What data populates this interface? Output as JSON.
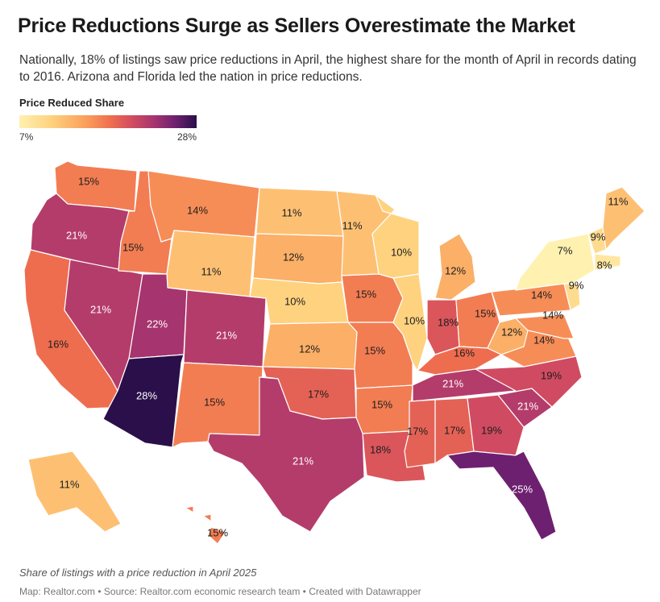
{
  "title": "Price Reductions Surge as Sellers Overestimate the Market",
  "subtitle": "Nationally, 18% of listings saw price reductions in April, the highest share for the month of April in records dating to 2016. Arizona and Florida led the nation in price reductions.",
  "legend": {
    "title": "Price Reduced Share",
    "min": "7%",
    "max": "28%"
  },
  "note": "Share of listings with a price reduction in April 2025",
  "source": "Map: Realtor.com • Source: Realtor.com economic research team • Created with Datawrapper",
  "chart_data": {
    "type": "choropleth",
    "title": "Price Reductions Surge as Sellers Overestimate the Market",
    "value_range": [
      7,
      28
    ],
    "unit": "%",
    "states": [
      {
        "id": "WA",
        "value": 15,
        "label": "15%"
      },
      {
        "id": "OR",
        "value": 21,
        "label": "21%"
      },
      {
        "id": "CA",
        "value": 16,
        "label": "16%"
      },
      {
        "id": "NV",
        "value": 21,
        "label": "21%"
      },
      {
        "id": "ID",
        "value": 15,
        "label": "15%"
      },
      {
        "id": "MT",
        "value": 14,
        "label": "14%"
      },
      {
        "id": "WY",
        "value": 11,
        "label": "11%"
      },
      {
        "id": "UT",
        "value": 22,
        "label": "22%"
      },
      {
        "id": "AZ",
        "value": 28,
        "label": "28%"
      },
      {
        "id": "CO",
        "value": 21,
        "label": "21%"
      },
      {
        "id": "NM",
        "value": 15,
        "label": "15%"
      },
      {
        "id": "ND",
        "value": 11,
        "label": "11%"
      },
      {
        "id": "SD",
        "value": 12,
        "label": "12%"
      },
      {
        "id": "NE",
        "value": 10,
        "label": "10%"
      },
      {
        "id": "KS",
        "value": 12,
        "label": "12%"
      },
      {
        "id": "OK",
        "value": 17,
        "label": "17%"
      },
      {
        "id": "TX",
        "value": 21,
        "label": "21%"
      },
      {
        "id": "MN",
        "value": 11,
        "label": "11%"
      },
      {
        "id": "IA",
        "value": 15,
        "label": "15%"
      },
      {
        "id": "MO",
        "value": 15,
        "label": "15%"
      },
      {
        "id": "AR",
        "value": 15,
        "label": "15%"
      },
      {
        "id": "LA",
        "value": 18,
        "label": "18%"
      },
      {
        "id": "WI",
        "value": 10,
        "label": "10%"
      },
      {
        "id": "IL",
        "value": 10,
        "label": "10%"
      },
      {
        "id": "MI",
        "value": 12,
        "label": "12%"
      },
      {
        "id": "IN",
        "value": 18,
        "label": "18%"
      },
      {
        "id": "OH",
        "value": 15,
        "label": "15%"
      },
      {
        "id": "KY",
        "value": 16,
        "label": "16%"
      },
      {
        "id": "TN",
        "value": 21,
        "label": "21%"
      },
      {
        "id": "MS",
        "value": 17,
        "label": "17%"
      },
      {
        "id": "AL",
        "value": 17,
        "label": "17%"
      },
      {
        "id": "GA",
        "value": 19,
        "label": "19%"
      },
      {
        "id": "FL",
        "value": 25,
        "label": "25%"
      },
      {
        "id": "SC",
        "value": 21,
        "label": "21%"
      },
      {
        "id": "NC",
        "value": 19,
        "label": "19%"
      },
      {
        "id": "VA",
        "value": 14,
        "label": "14%"
      },
      {
        "id": "WV",
        "value": 12,
        "label": "12%"
      },
      {
        "id": "PA",
        "value": 14,
        "label": "14%"
      },
      {
        "id": "NY",
        "value": 7,
        "label": "7%"
      },
      {
        "id": "MD",
        "value": 14,
        "label": "14%"
      },
      {
        "id": "NJ",
        "value": 9,
        "label": "9%"
      },
      {
        "id": "NH",
        "value": 9,
        "label": "9%"
      },
      {
        "id": "MA",
        "value": 8,
        "label": "8%"
      },
      {
        "id": "ME",
        "value": 11,
        "label": "11%"
      },
      {
        "id": "AK",
        "value": 11,
        "label": "11%"
      },
      {
        "id": "HI",
        "value": 15,
        "label": "15%"
      }
    ]
  }
}
